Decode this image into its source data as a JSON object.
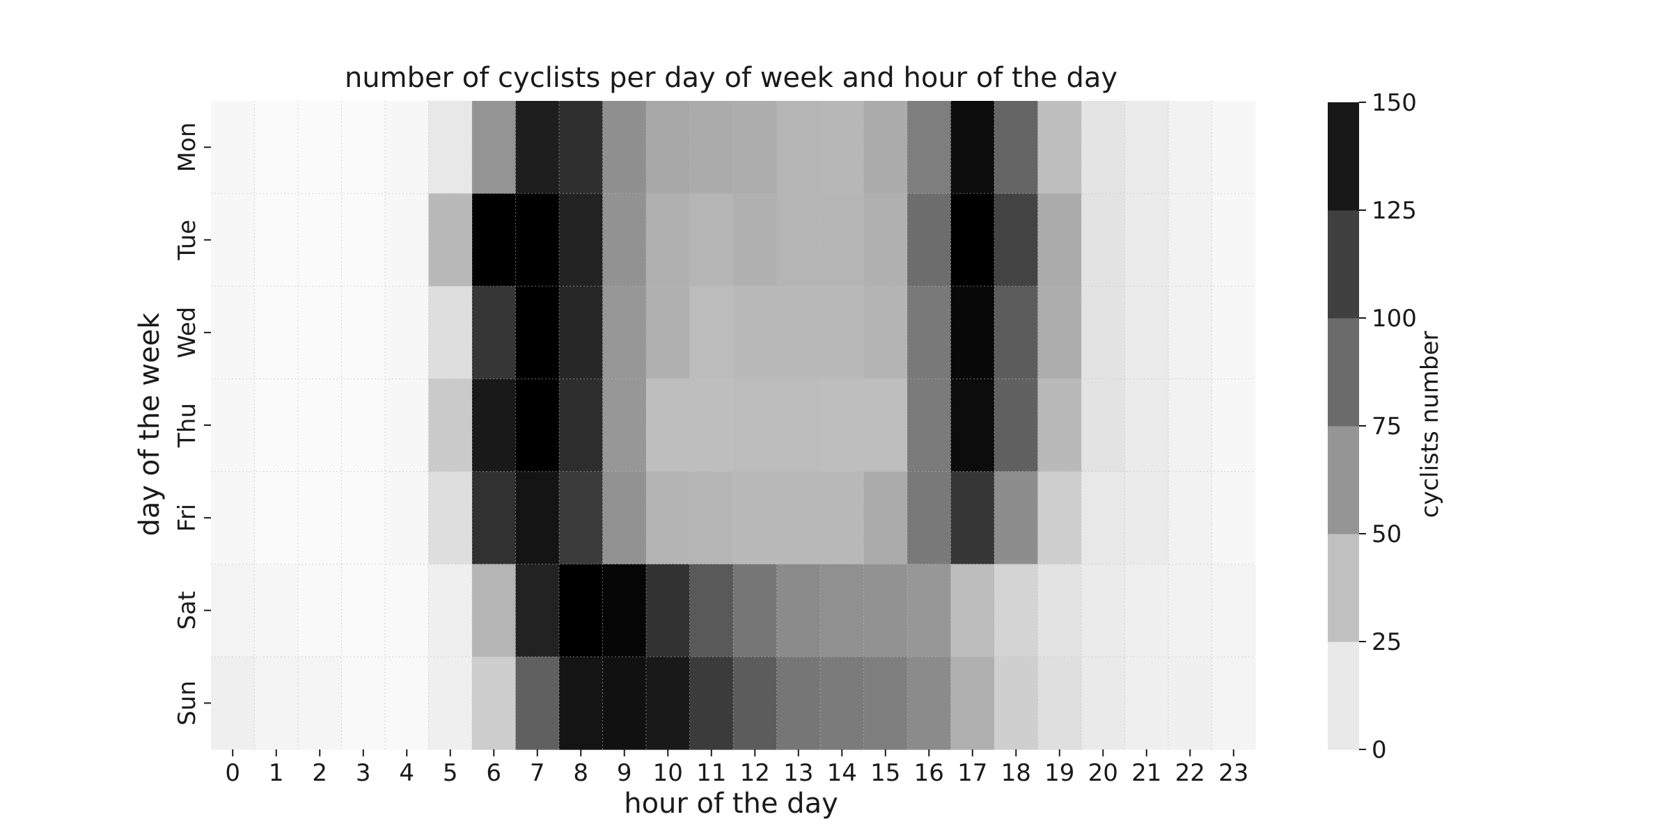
{
  "chart_data": {
    "type": "heatmap",
    "title": "number of cyclists per day of week and hour of the day",
    "xlabel": "hour of the day",
    "ylabel": "day of the week",
    "x": [
      "0",
      "1",
      "2",
      "3",
      "4",
      "5",
      "6",
      "7",
      "8",
      "9",
      "10",
      "11",
      "12",
      "13",
      "14",
      "15",
      "16",
      "17",
      "18",
      "19",
      "20",
      "21",
      "22",
      "23"
    ],
    "y": [
      "Mon",
      "Tue",
      "Wed",
      "Thu",
      "Fri",
      "Sat",
      "Sun"
    ],
    "values": [
      [
        3,
        1,
        1,
        1,
        3,
        12,
        62,
        132,
        122,
        65,
        50,
        48,
        47,
        42,
        41,
        48,
        75,
        142,
        90,
        37,
        14,
        10,
        6,
        3
      ],
      [
        3,
        1,
        1,
        1,
        3,
        40,
        158,
        150,
        130,
        63,
        45,
        42,
        45,
        42,
        42,
        45,
        85,
        155,
        110,
        48,
        15,
        10,
        6,
        3
      ],
      [
        3,
        1,
        1,
        1,
        3,
        18,
        118,
        152,
        127,
        60,
        45,
        38,
        40,
        40,
        40,
        43,
        78,
        145,
        95,
        47,
        15,
        10,
        6,
        3
      ],
      [
        3,
        1,
        1,
        1,
        3,
        30,
        135,
        155,
        123,
        60,
        37,
        37,
        38,
        38,
        37,
        37,
        77,
        143,
        92,
        40,
        15,
        10,
        6,
        3
      ],
      [
        3,
        1,
        1,
        1,
        3,
        18,
        121,
        138,
        115,
        63,
        43,
        42,
        40,
        40,
        40,
        48,
        78,
        118,
        66,
        27,
        12,
        10,
        6,
        3
      ],
      [
        5,
        3,
        2,
        1,
        2,
        8,
        42,
        130,
        150,
        147,
        120,
        97,
        80,
        67,
        64,
        63,
        60,
        38,
        24,
        15,
        10,
        8,
        6,
        5
      ],
      [
        8,
        5,
        4,
        2,
        2,
        8,
        28,
        93,
        138,
        140,
        135,
        115,
        95,
        80,
        77,
        75,
        67,
        45,
        27,
        17,
        11,
        8,
        7,
        5
      ]
    ],
    "colorbar": {
      "label": "cyclists number",
      "ticks": [
        "0",
        "25",
        "50",
        "75",
        "100",
        "125",
        "150"
      ],
      "vmin": 0,
      "vmax": 150,
      "bins": 6,
      "colors": [
        "#e9e9e9",
        "#c0c0c0",
        "#959595",
        "#6b6b6b",
        "#404040",
        "#171717"
      ]
    },
    "grid": true,
    "colorbar_position": "right"
  }
}
